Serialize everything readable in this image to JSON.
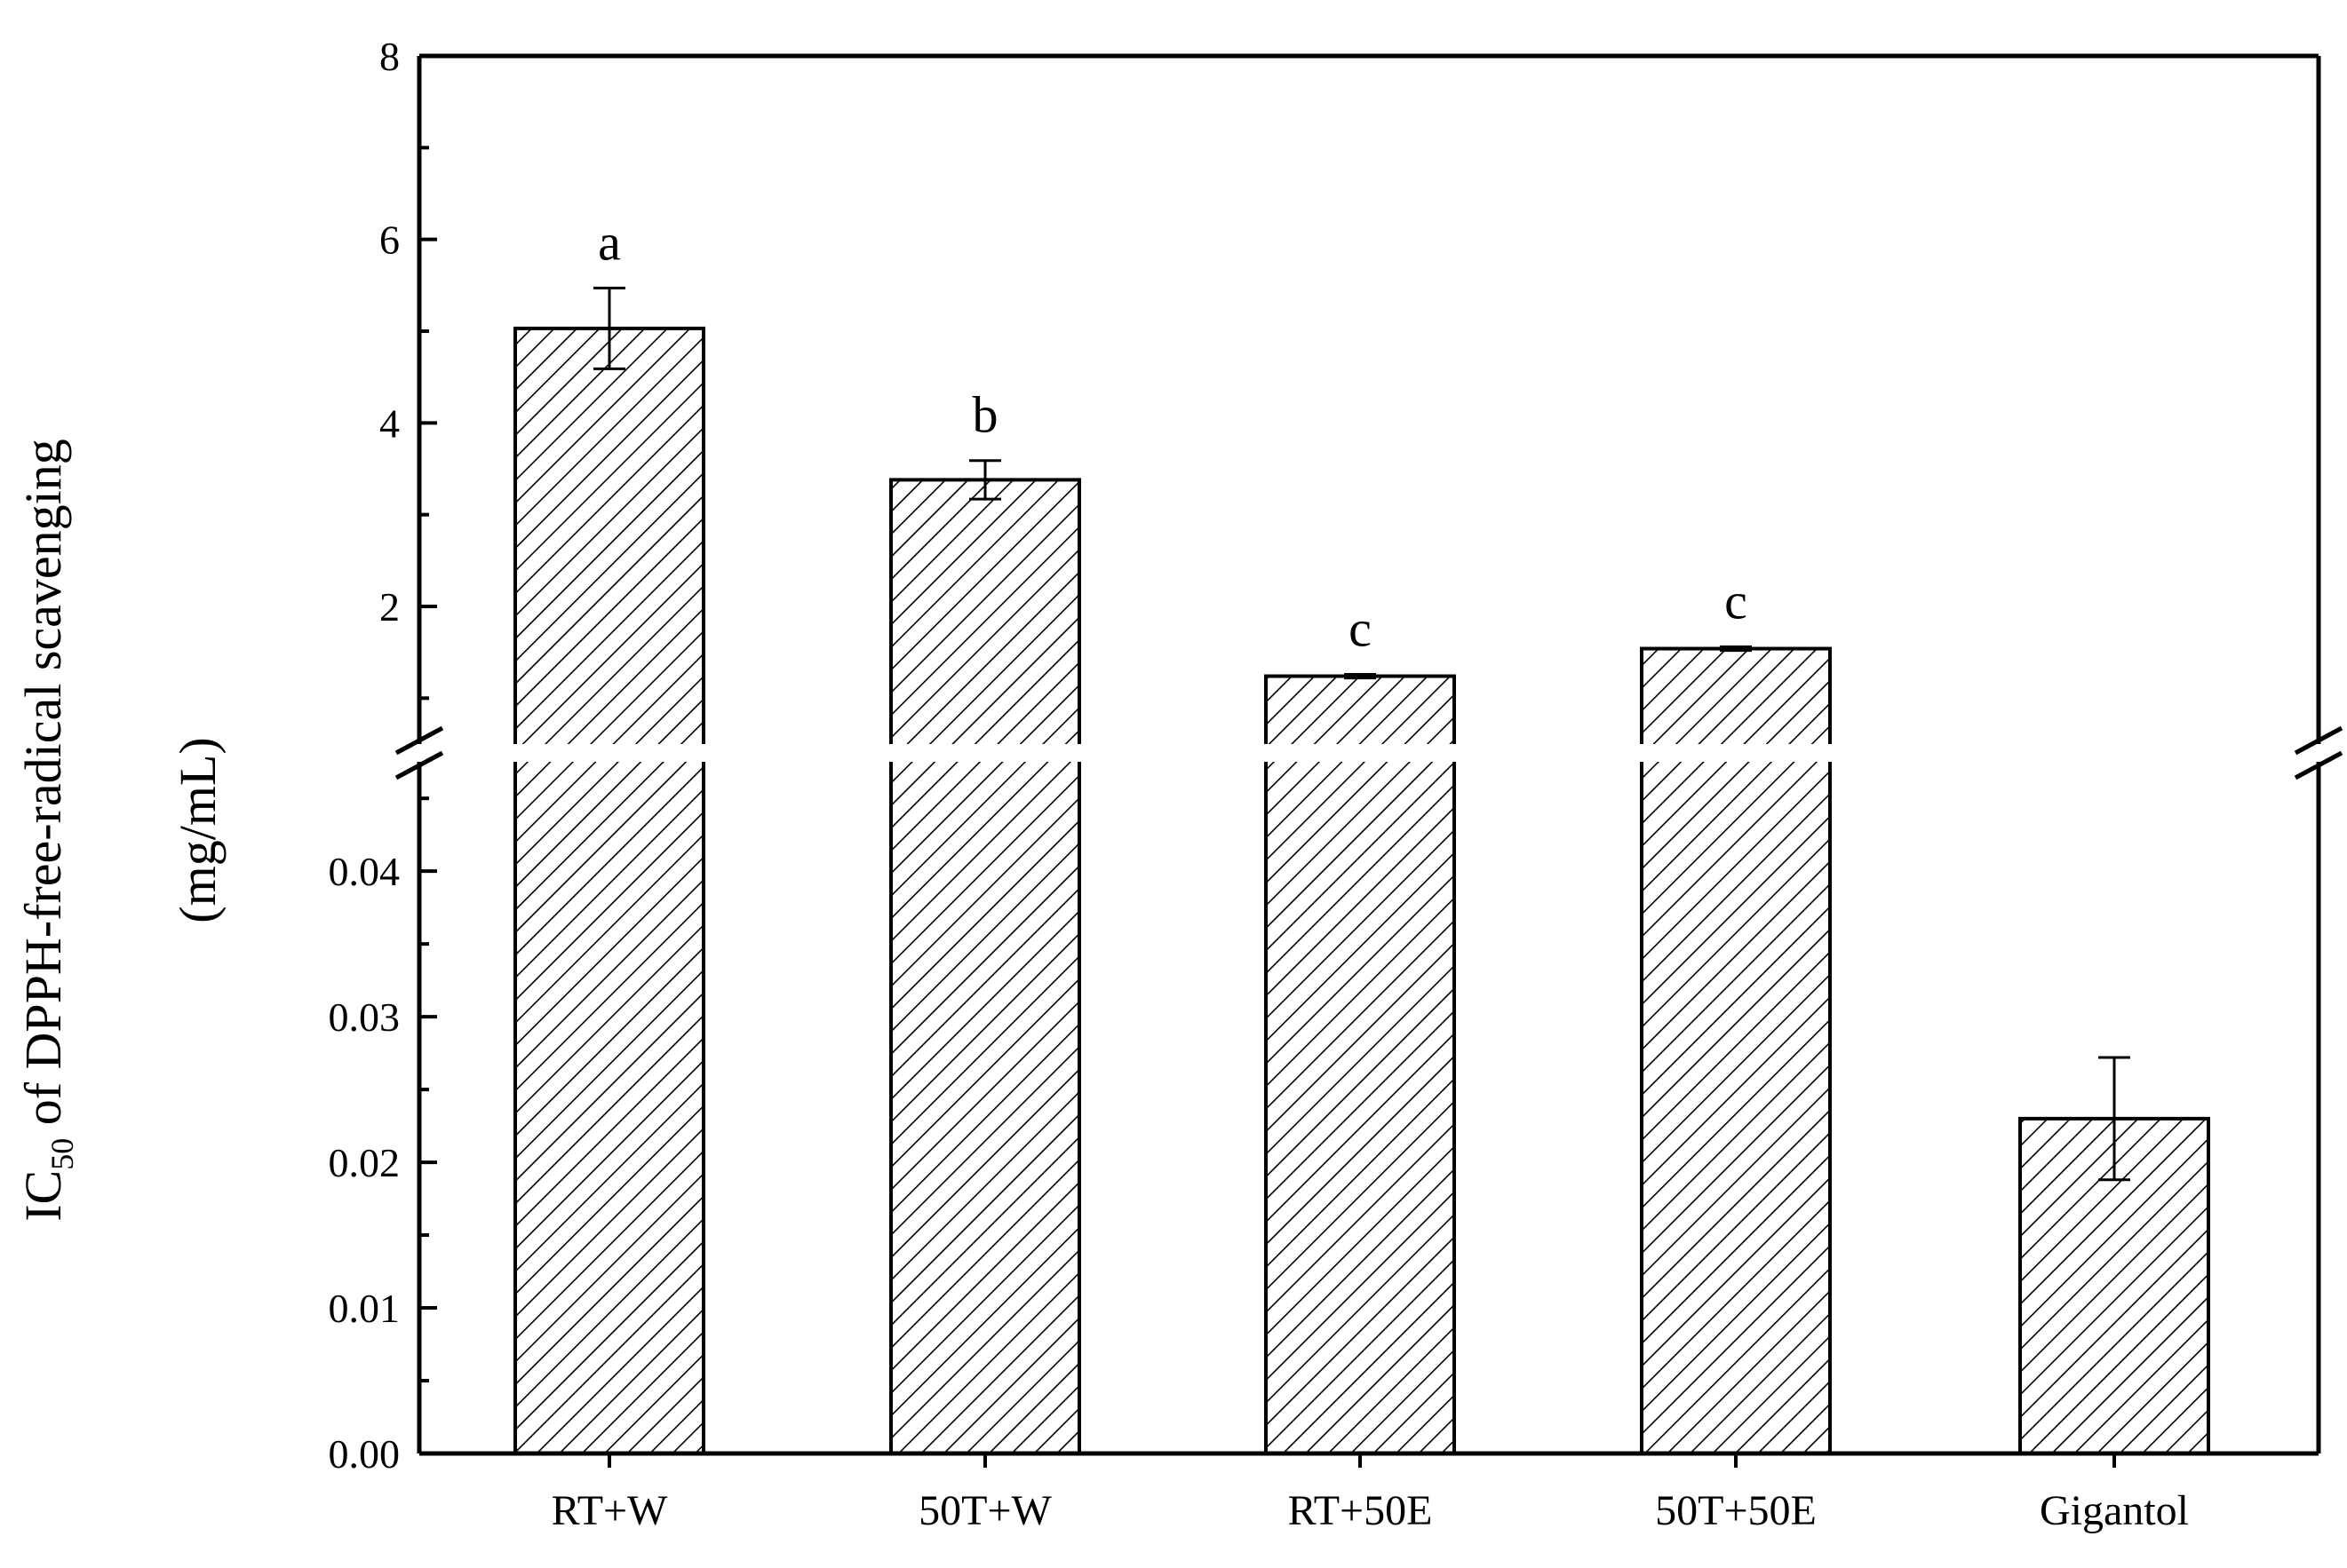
{
  "chart_data": {
    "type": "bar",
    "broken_axis": true,
    "ylabel": {
      "prefix": "IC",
      "subscript": "50",
      "rest": " of DPPH-free-radical scavenging",
      "unit": "(mg/mL)"
    },
    "categories": [
      "RT+W",
      "50T+W",
      "RT+50E",
      "50T+50E",
      "Gigantol"
    ],
    "series": [
      {
        "values": [
          5.03,
          3.38,
          1.24,
          1.54,
          0.023
        ],
        "errors": [
          0.44,
          0.21,
          0.02,
          0.02,
          0.0042
        ],
        "significance": [
          "a",
          "b",
          "c",
          "c",
          ""
        ]
      }
    ],
    "upper_segment": {
      "ylim": [
        0.5,
        8
      ],
      "ticks": [
        "2",
        "4",
        "6",
        "8"
      ],
      "tick_values": [
        2,
        4,
        6,
        8
      ]
    },
    "lower_segment": {
      "ylim": [
        0,
        0.048
      ],
      "ticks": [
        "0.00",
        "0.01",
        "0.02",
        "0.03",
        "0.04"
      ],
      "tick_values": [
        0,
        0.01,
        0.02,
        0.03,
        0.04
      ]
    },
    "bar_fill": "diagonal-hatch",
    "colors": {
      "ink": "#000000",
      "background": "#ffffff"
    },
    "grid": false,
    "legend": "none"
  }
}
